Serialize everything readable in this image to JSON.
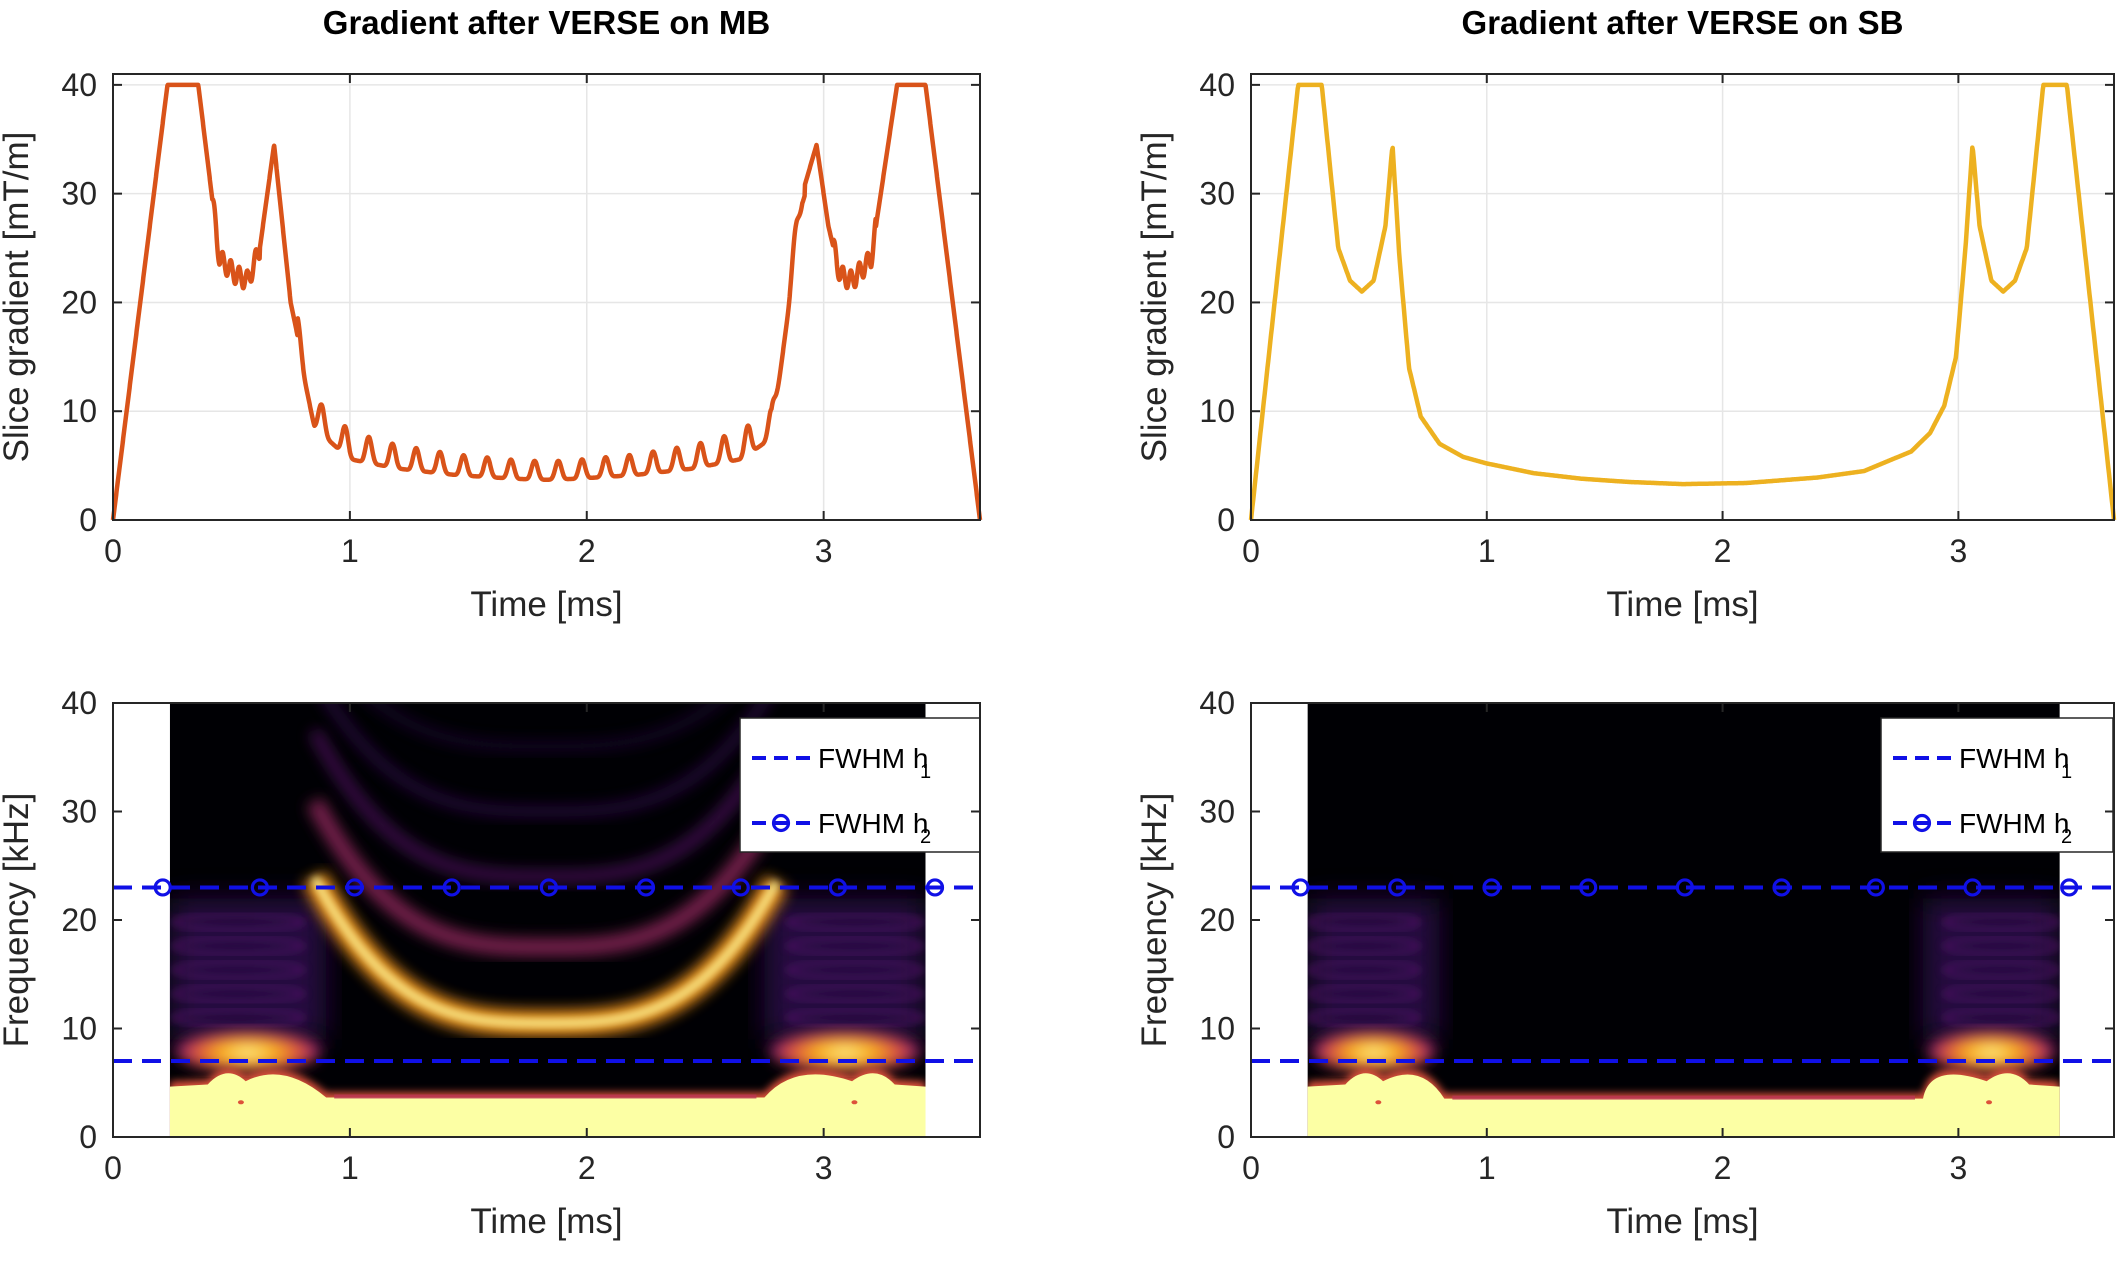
{
  "chart_data": [
    {
      "type": "line",
      "title": "Gradient after VERSE on MB",
      "xlabel": "Time [ms]",
      "ylabel": "Slice gradient [mT/m]",
      "xlim": [
        0,
        3.66
      ],
      "ylim": [
        0,
        41
      ],
      "xticks": [
        0,
        1,
        2,
        3
      ],
      "yticks": [
        0,
        10,
        20,
        30,
        40
      ],
      "grid": true,
      "color": "#D95319",
      "oscillation_period_ms": 0.1,
      "series": [
        {
          "x": [
            0,
            0.23,
            0.36,
            0.45,
            0.52,
            0.57,
            0.62,
            0.68,
            0.75,
            0.85,
            1.0,
            1.2,
            1.45,
            1.7,
            1.83,
            1.95,
            2.2,
            2.45,
            2.65,
            2.78,
            2.85,
            2.91,
            2.97,
            3.02,
            3.07,
            3.12,
            3.2,
            3.31,
            3.43,
            3.66
          ],
          "y": [
            0,
            40,
            40,
            24,
            22.5,
            22,
            25,
            34.5,
            20,
            9.5,
            6.5,
            5.5,
            4.8,
            4.4,
            4.3,
            4.4,
            4.8,
            5.5,
            6.5,
            8.5,
            20,
            30,
            34.5,
            27,
            22.5,
            22,
            24,
            40,
            40,
            0
          ]
        }
      ]
    },
    {
      "type": "line",
      "title": "Gradient after VERSE on SB",
      "xlabel": "Time [ms]",
      "ylabel": "Slice gradient [mT/m]",
      "xlim": [
        0,
        3.66
      ],
      "ylim": [
        0,
        41
      ],
      "xticks": [
        0,
        1,
        2,
        3
      ],
      "yticks": [
        0,
        10,
        20,
        30,
        40
      ],
      "grid": true,
      "color": "#EDB120",
      "series": [
        {
          "x": [
            0,
            0.2,
            0.3,
            0.37,
            0.42,
            0.47,
            0.52,
            0.57,
            0.6,
            0.63,
            0.67,
            0.72,
            0.8,
            0.9,
            1.0,
            1.2,
            1.4,
            1.6,
            1.83,
            2.1,
            2.4,
            2.6,
            2.8,
            2.88,
            2.94,
            2.99,
            3.03,
            3.06,
            3.09,
            3.14,
            3.19,
            3.24,
            3.29,
            3.36,
            3.46,
            3.66
          ],
          "y": [
            0,
            40,
            40,
            25,
            22,
            21,
            22,
            27,
            34.5,
            24,
            14,
            9.5,
            7,
            5.8,
            5.2,
            4.3,
            3.8,
            3.5,
            3.3,
            3.4,
            3.9,
            4.5,
            6.3,
            8,
            10.5,
            15,
            25,
            34.5,
            27,
            22,
            21,
            22,
            25,
            40,
            40,
            0
          ]
        }
      ]
    },
    {
      "type": "heatmap",
      "xlabel": "Time [ms]",
      "ylabel": "Frequency [kHz]",
      "xlim": [
        0,
        3.66
      ],
      "ylim": [
        0,
        40
      ],
      "xticks": [
        0,
        1,
        2,
        3
      ],
      "yticks": [
        0,
        10,
        20,
        30,
        40
      ],
      "colormap": "inferno",
      "data_extent_x": [
        0.24,
        3.43
      ],
      "legend": {
        "placement": "top-right",
        "entries": [
          {
            "label": "FWHM h",
            "sub": "1",
            "style": "dashed",
            "color": "#1010E6"
          },
          {
            "label": "FWHM h",
            "sub": "2",
            "style": "dashed-circle",
            "color": "#1010E6"
          }
        ]
      },
      "fwhm_h1_khz": 7,
      "fwhm_h2_khz": 23,
      "h2_marker_x": [
        0.21,
        0.62,
        1.02,
        1.43,
        1.84,
        2.25,
        2.65,
        3.06,
        3.47
      ]
    },
    {
      "type": "heatmap",
      "xlabel": "Time [ms]",
      "ylabel": "Frequency [kHz]",
      "xlim": [
        0,
        3.66
      ],
      "ylim": [
        0,
        40
      ],
      "xticks": [
        0,
        1,
        2,
        3
      ],
      "yticks": [
        0,
        10,
        20,
        30,
        40
      ],
      "colormap": "inferno",
      "data_extent_x": [
        0.24,
        3.43
      ],
      "legend": {
        "placement": "top-right",
        "entries": [
          {
            "label": "FWHM h",
            "sub": "1",
            "style": "dashed",
            "color": "#1010E6"
          },
          {
            "label": "FWHM h",
            "sub": "2",
            "style": "dashed-circle",
            "color": "#1010E6"
          }
        ]
      },
      "fwhm_h1_khz": 7,
      "fwhm_h2_khz": 23,
      "h2_marker_x": [
        0.21,
        0.62,
        1.02,
        1.43,
        1.84,
        2.25,
        2.65,
        3.06,
        3.47
      ]
    }
  ]
}
